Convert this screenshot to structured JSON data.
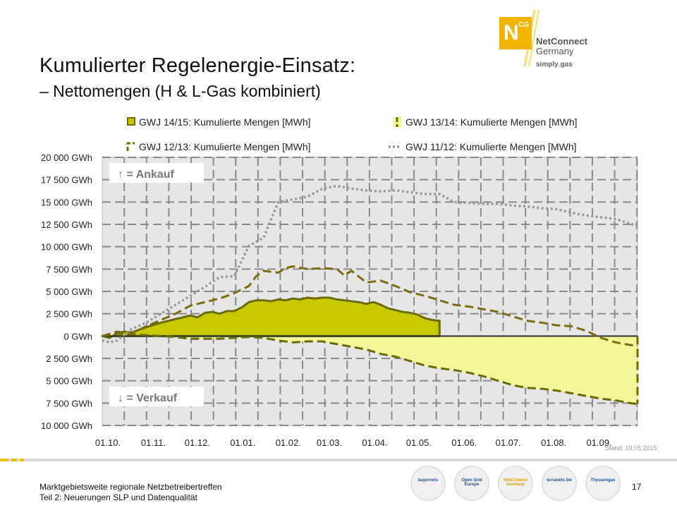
{
  "title": "Kumulierter  Regelenergie-Einsatz:",
  "subtitle": "– Nettomengen (H & L-Gas kombiniert)",
  "logo": {
    "letter": "N",
    "sup": "CG",
    "name_line1": "NetConnect",
    "name_line2": "Germany",
    "tagline": "simply gas"
  },
  "colors": {
    "gwj1415": "#c8c800",
    "gwj1415_line": "#6b6b00",
    "gwj1314_fill": "#f4f499",
    "gwj1314_line": "#6b6b00",
    "gwj1213_line": "#7d6b10",
    "gwj1112_line": "#999999",
    "plot_bg": "#e6e6e6",
    "grid": "#8a8a8a"
  },
  "annotations": {
    "ankauf": "↑ = Ankauf",
    "verkauf": "↓ = Verkauf"
  },
  "stand": "Stand: 19.05.2015",
  "footer": {
    "line1": "Marktgebietsweite regionale Netzbetreibertreffen",
    "line2": "Teil 2: Neuerungen SLP und Datenqualität",
    "page": "17"
  },
  "partners": [
    "bayernets",
    "Open Grid Europe",
    "NetConnect Germany",
    "terranets bw",
    "Thyssengas"
  ],
  "chart_data": {
    "type": "area",
    "x_tick_labels": [
      "01.10.",
      "01.11.",
      "01.12.",
      "01.01.",
      "01.02.",
      "01.03.",
      "01.04.",
      "01.05.",
      "01.06.",
      "01.07.",
      "01.08.",
      "01.09."
    ],
    "x_ticks": [
      0,
      31,
      61,
      92,
      123,
      151,
      182,
      212,
      243,
      273,
      304,
      335
    ],
    "xlim": [
      0,
      365
    ],
    "ylim": [
      -10000,
      20000
    ],
    "y_ticks": [
      20000,
      17500,
      15000,
      12500,
      10000,
      7500,
      5000,
      2500,
      0,
      -2500,
      -5000,
      -7500,
      -10000
    ],
    "y_tick_labels": [
      "20 000 GWh",
      "17 500 GWh",
      "15 000 GWh",
      "12 500 GWh",
      "10 000 GWh",
      "7 500 GWh",
      "5 000 GWh",
      "2 500 GWh",
      "0 GWh",
      "2 500 GWh",
      "5 000 GWh",
      "7 500 GWh",
      "10 000 GWh"
    ],
    "grid": true,
    "legend_position": "top",
    "series": [
      {
        "name": "GWJ 14/15: Kumulierte Mengen [MWh]",
        "style": "area-solid",
        "x": [
          0,
          5,
          10,
          15,
          20,
          25,
          30,
          40,
          50,
          55,
          60,
          65,
          70,
          75,
          80,
          85,
          90,
          95,
          100,
          105,
          110,
          115,
          120,
          125,
          130,
          135,
          140,
          145,
          150,
          155,
          160,
          165,
          170,
          175,
          180,
          185,
          190,
          195,
          200,
          205,
          210,
          215,
          220,
          225,
          230,
          230
        ],
        "y": [
          0,
          -200,
          300,
          500,
          400,
          700,
          1000,
          1500,
          1900,
          2100,
          2300,
          2100,
          2600,
          2700,
          2500,
          2800,
          2800,
          3200,
          3800,
          4000,
          4000,
          3900,
          4100,
          4000,
          4200,
          4100,
          4300,
          4200,
          4300,
          4300,
          4100,
          4000,
          3900,
          3800,
          3600,
          3800,
          3500,
          3100,
          2900,
          2700,
          2600,
          2400,
          2000,
          1800,
          1700,
          0
        ]
      },
      {
        "name": "GWJ 13/14: Kumulierte Mengen [MWh]",
        "style": "area-dashed",
        "x": [
          0,
          10,
          20,
          30,
          40,
          50,
          60,
          70,
          80,
          90,
          100,
          110,
          120,
          130,
          140,
          150,
          160,
          170,
          180,
          190,
          200,
          210,
          220,
          230,
          240,
          250,
          260,
          270,
          280,
          290,
          300,
          310,
          320,
          330,
          340,
          350,
          360,
          365
        ],
        "y": [
          0,
          300,
          200,
          100,
          0,
          -100,
          -300,
          -300,
          -300,
          -200,
          -100,
          -200,
          -500,
          -700,
          -600,
          -600,
          -900,
          -1200,
          -1500,
          -2000,
          -2300,
          -2800,
          -3300,
          -3600,
          -3800,
          -4100,
          -4500,
          -5000,
          -5500,
          -5800,
          -5900,
          -6100,
          -6400,
          -6700,
          -7000,
          -7200,
          -7500,
          -7600
        ]
      },
      {
        "name": "GWJ 12/13: Kumulierte Mengen [MWh]",
        "style": "line-dashed",
        "x": [
          0,
          10,
          20,
          30,
          40,
          50,
          60,
          70,
          80,
          90,
          100,
          105,
          110,
          120,
          125,
          130,
          140,
          150,
          160,
          165,
          170,
          180,
          190,
          200,
          210,
          220,
          230,
          240,
          250,
          260,
          270,
          280,
          290,
          300,
          310,
          320,
          330,
          340,
          350,
          360,
          365
        ],
        "y": [
          0,
          500,
          300,
          1100,
          1800,
          2500,
          3400,
          3800,
          4200,
          4800,
          5600,
          6700,
          7300,
          7100,
          7600,
          7800,
          7500,
          7600,
          7500,
          6800,
          7300,
          6000,
          6200,
          5600,
          4900,
          4500,
          4000,
          3500,
          3300,
          3000,
          2700,
          2200,
          1700,
          1500,
          1200,
          1100,
          600,
          -200,
          -700,
          -1000,
          -1100
        ]
      },
      {
        "name": "GWJ 11/12: Kumulierte Mengen [MWh]",
        "style": "line-dotted",
        "x": [
          0,
          5,
          10,
          20,
          30,
          40,
          50,
          60,
          70,
          80,
          90,
          100,
          110,
          120,
          130,
          140,
          150,
          160,
          170,
          180,
          190,
          200,
          210,
          220,
          230,
          240,
          250,
          260,
          270,
          280,
          290,
          300,
          310,
          320,
          330,
          340,
          350,
          360,
          365
        ],
        "y": [
          -500,
          -700,
          -500,
          800,
          1500,
          2500,
          3500,
          4500,
          5500,
          6600,
          6700,
          10100,
          11000,
          15000,
          15300,
          15600,
          16500,
          16800,
          16500,
          16300,
          16200,
          16300,
          16100,
          15900,
          15900,
          15000,
          14900,
          14800,
          14800,
          14600,
          14500,
          14300,
          14200,
          13800,
          13500,
          13300,
          13100,
          12600,
          12300
        ]
      }
    ]
  }
}
